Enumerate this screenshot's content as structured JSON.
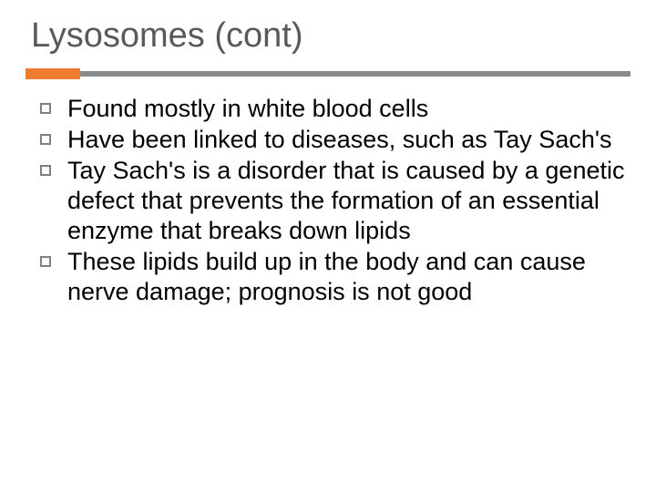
{
  "slide": {
    "title": "Lysosomes (cont)",
    "title_color": "#595959",
    "title_fontsize": 38,
    "rule_accent_color": "#ed7d31",
    "rule_main_color": "#8b8b8b",
    "background_color": "#ffffff",
    "bullets": [
      "Found mostly in white blood cells",
      "Have been linked to diseases, such as Tay Sach's",
      "Tay Sach's is a disorder that is caused by a genetic defect that prevents the formation of an essential enzyme that breaks down lipids",
      "These lipids build up in the body and can cause nerve damage; prognosis is not good"
    ],
    "bullet_text_color": "#000000",
    "bullet_fontsize": 27,
    "bullet_marker_border_color": "#808080"
  }
}
